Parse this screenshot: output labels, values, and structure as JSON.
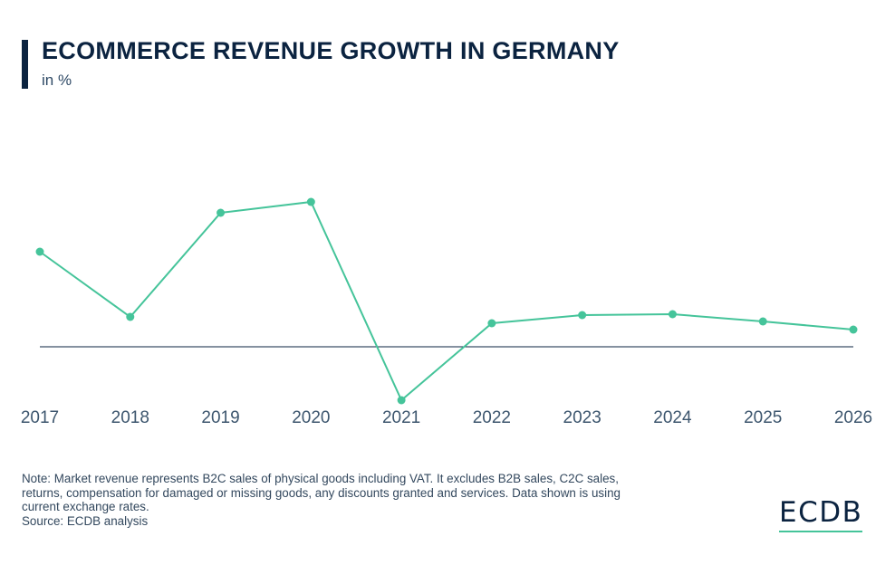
{
  "header": {
    "title": "ECOMMERCE REVENUE GROWTH IN GERMANY",
    "subtitle": "in %"
  },
  "footer": {
    "note_lines": [
      "Note: Market revenue represents B2C sales of physical goods including VAT. It excludes B2B sales, C2C sales,",
      "returns, compensation for damaged or missing goods, any discounts granted and services. Data shown is using",
      "current exchange rates."
    ],
    "source": "Source: ECDB analysis"
  },
  "brand": {
    "logo_text": "ECDB"
  },
  "colors": {
    "line": "#45c49a",
    "zero_line": "#0b2340",
    "title": "#0b2340",
    "accent": "#45c49a"
  },
  "chart_data": {
    "type": "line",
    "title": "ECOMMERCE REVENUE GROWTH IN GERMANY",
    "subtitle": "in %",
    "xlabel": "",
    "ylabel": "",
    "categories": [
      "2017",
      "2018",
      "2019",
      "2020",
      "2021",
      "2022",
      "2023",
      "2024",
      "2025",
      "2026"
    ],
    "series": [
      {
        "values": [
          10.5,
          3.3,
          14.8,
          16.0,
          -5.9,
          2.6,
          3.5,
          3.6,
          2.8,
          1.9
        ]
      }
    ],
    "ylim": [
      -8,
      22
    ],
    "grid": false,
    "legend": "none",
    "zero_line": true
  }
}
